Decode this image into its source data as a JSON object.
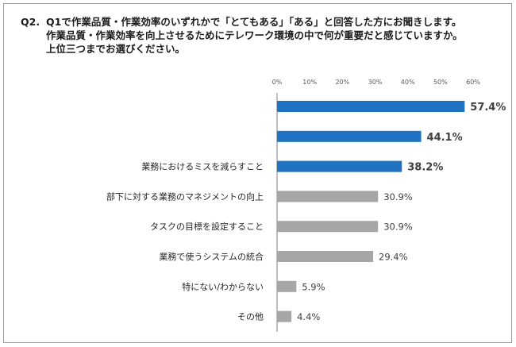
{
  "question": {
    "number": "Q2.",
    "lines": [
      "Q1で作業品質・作業効率のいずれかで「とてもある」「ある」と回答した方にお聞きします。",
      "作業品質・作業効率を向上させるためにテレワーク環境の中で何が重要だと感じていますか。",
      "上位三つまでお選びください。"
    ]
  },
  "colors": {
    "highlight": "#1f73c2",
    "normal": "#a6a6a6",
    "axis": "#7f7f7f"
  },
  "chart_data": {
    "type": "bar",
    "orientation": "horizontal",
    "categories": [
      "",
      "",
      "業務におけるミスを減らすこと",
      "部下に対する業務のマネジメントの向上",
      "タスクの目標を設定すること",
      "業務で使うシステムの統合",
      "特にない/わからない",
      "その他"
    ],
    "values": [
      57.4,
      44.1,
      38.2,
      30.9,
      30.9,
      29.4,
      5.9,
      4.4
    ],
    "value_labels": [
      "57.4%",
      "44.1%",
      "38.2%",
      "30.9%",
      "30.9%",
      "29.4%",
      "5.9%",
      "4.4%"
    ],
    "highlighted": [
      true,
      true,
      true,
      false,
      false,
      false,
      false,
      false
    ],
    "xlim": [
      0,
      60
    ],
    "ticks": [
      0,
      10,
      20,
      30,
      40,
      50,
      60
    ],
    "tick_labels": [
      "0%",
      "10%",
      "20%",
      "30%",
      "40%",
      "50%",
      "60%"
    ],
    "legend": "none",
    "grid": false
  }
}
